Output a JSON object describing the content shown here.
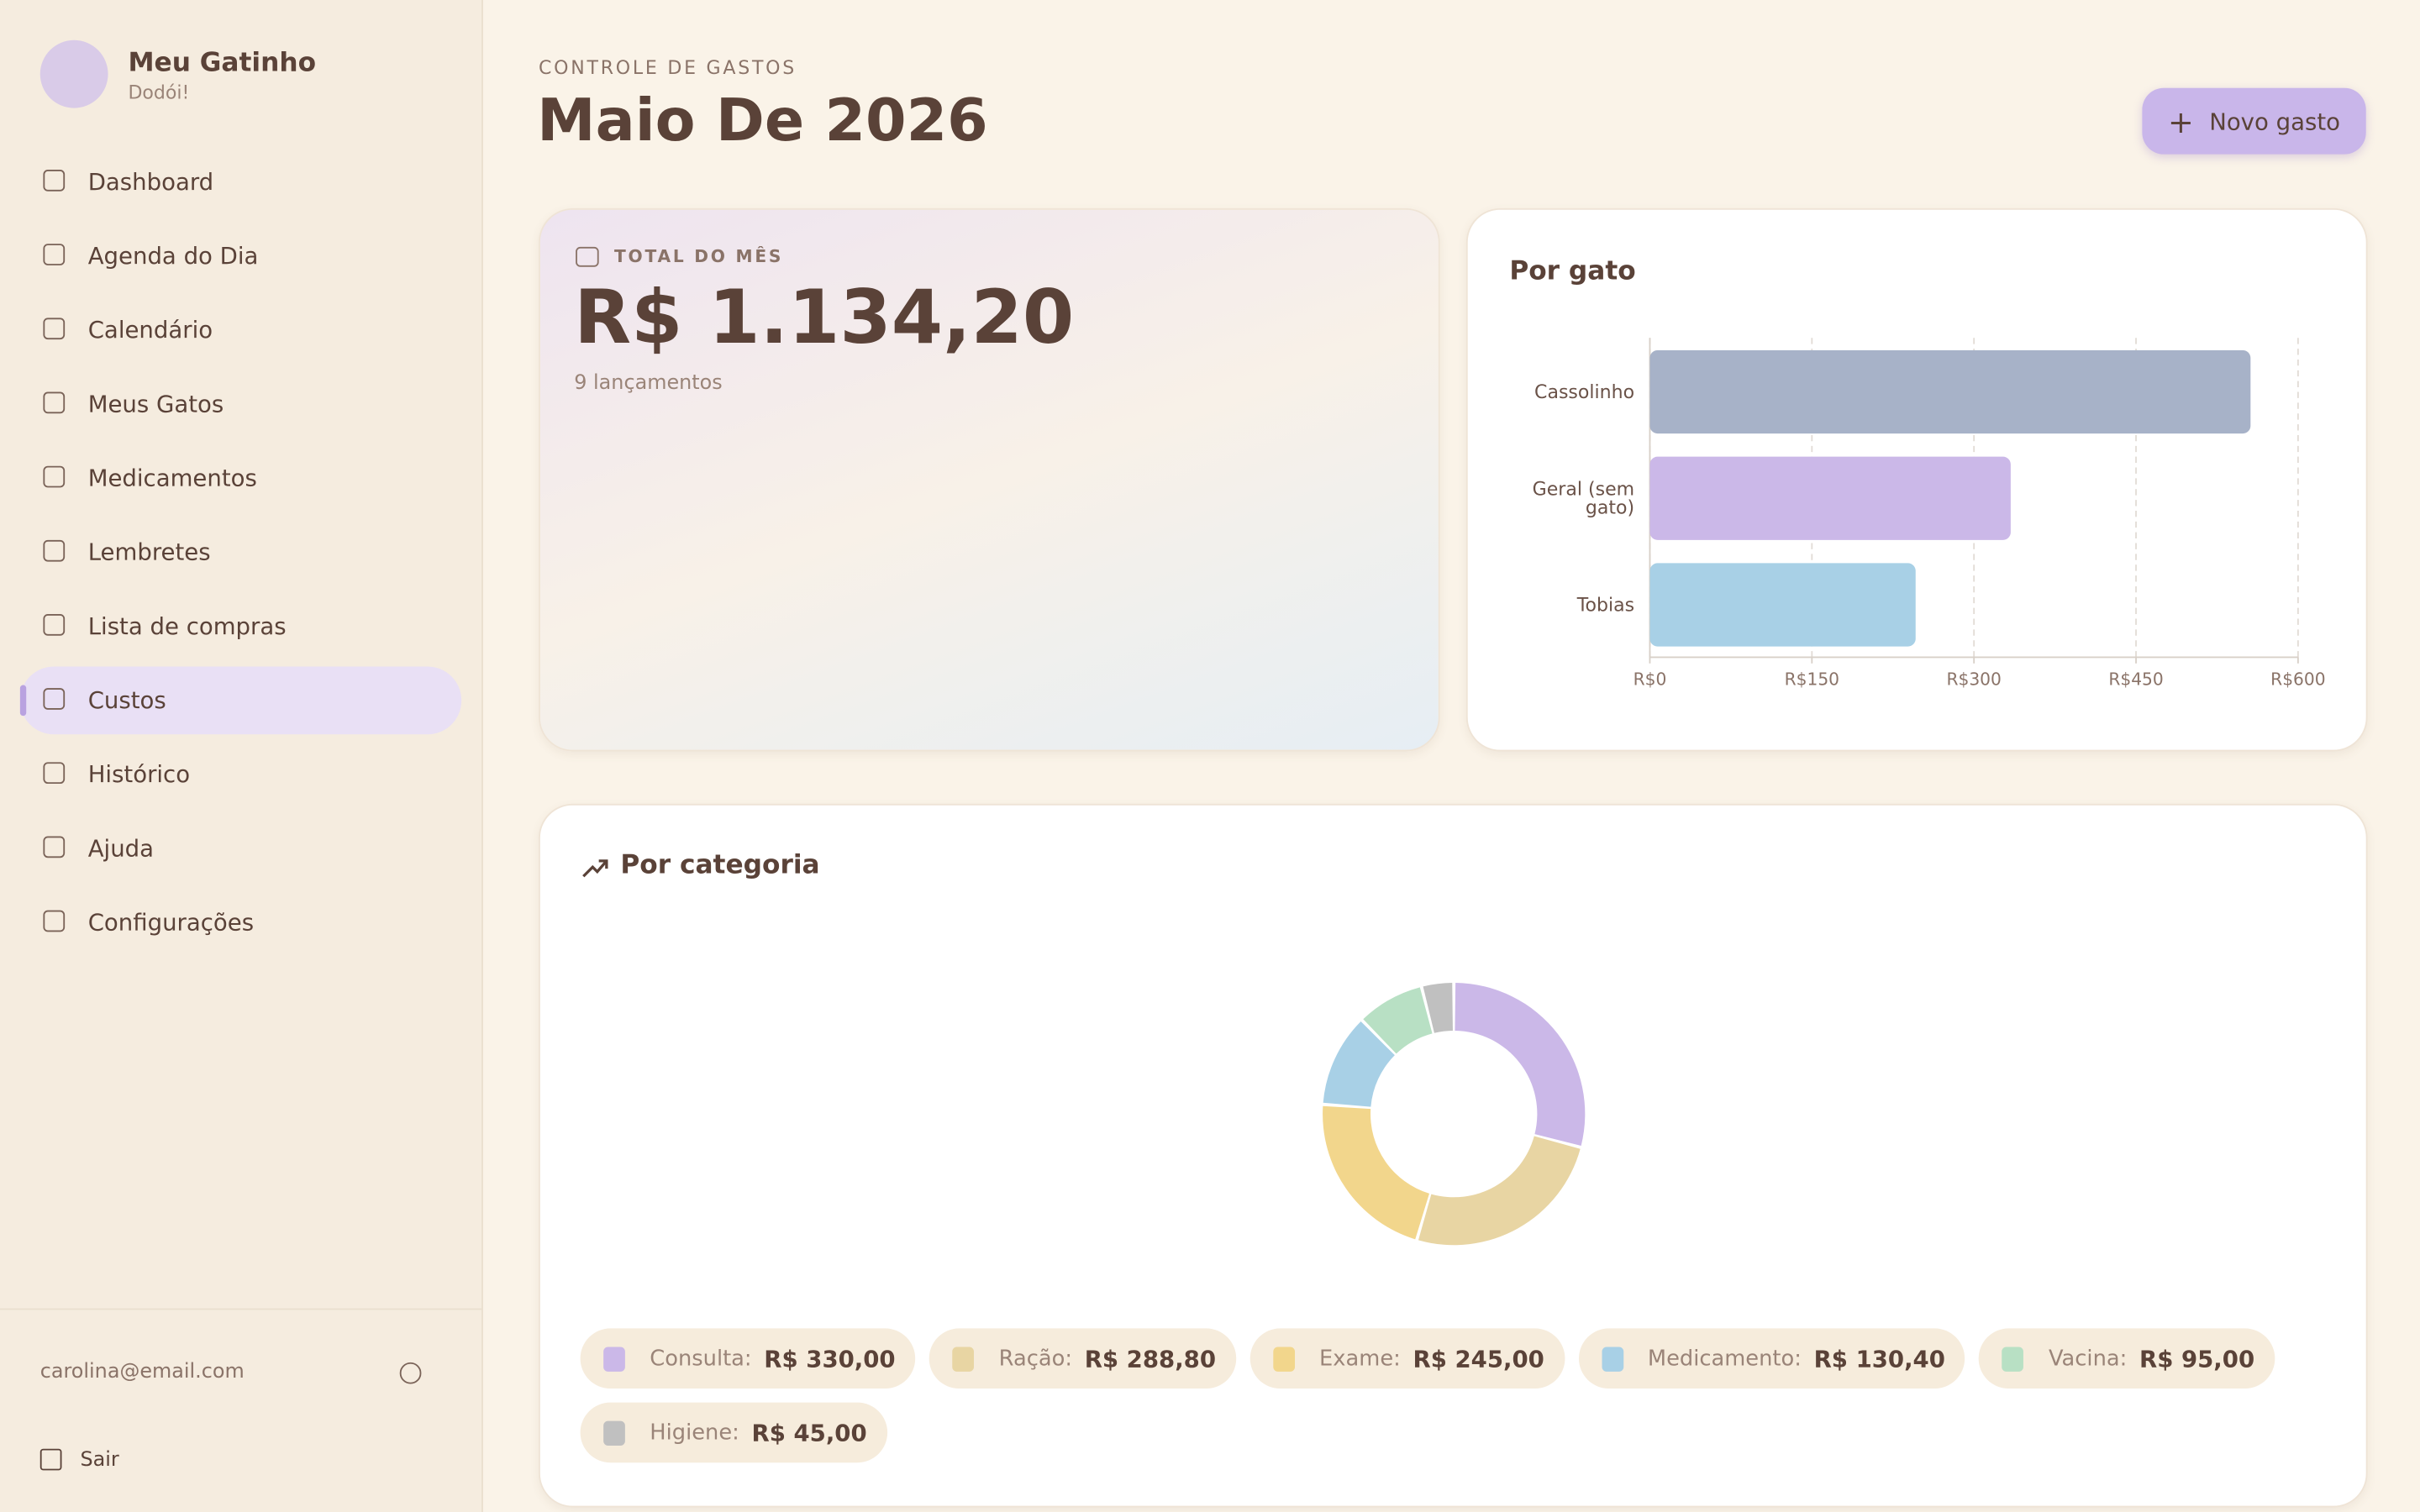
{
  "sidebar": {
    "app_name": "Meu Gatinho",
    "status": "Dodói!",
    "nav": [
      "Dashboard",
      "Agenda do Dia",
      "Calendário",
      "Meus Gatos",
      "Medicamentos",
      "Lembretes",
      "Lista de compras",
      "Custos",
      "Histórico",
      "Ajuda",
      "Configurações"
    ],
    "active": "Custos",
    "email": "carolina@email.com",
    "logout": "Sair"
  },
  "header": {
    "eyebrow": "CONTROLE DE GASTOS",
    "title": "Maio De 2026",
    "button": "Novo gasto"
  },
  "total_card": {
    "label": "TOTAL DO MÊS",
    "amount": "R$ 1.134,20",
    "count": "9 lançamentos"
  },
  "chart_data": [
    {
      "type": "bar",
      "orientation": "horizontal",
      "title": "Por gato",
      "categories": [
        "Cassolinho",
        "Geral (sem gato)",
        "Tobias"
      ],
      "values": [
        556,
        334,
        246
      ],
      "colors": [
        "#a7b2c8",
        "#cbb8e8",
        "#a8d0e6"
      ],
      "xlim": [
        0,
        600
      ],
      "xticks": [
        {
          "value": 0,
          "label": "R$0"
        },
        {
          "value": 150,
          "label": "R$150"
        },
        {
          "value": 300,
          "label": "R$300"
        },
        {
          "value": 450,
          "label": "R$450"
        },
        {
          "value": 600,
          "label": "R$600"
        }
      ],
      "grid": true
    },
    {
      "type": "pie",
      "title": "Por categoria",
      "categories": [
        "Consulta:",
        "Ração:",
        "Exame:",
        "Medicamento:",
        "Vacina:",
        "Higiene:"
      ],
      "values": [
        330,
        288.8,
        245,
        130.4,
        95,
        45
      ],
      "value_labels": [
        "R$ 330,00",
        "R$ 288,80",
        "R$ 245,00",
        "R$ 130,40",
        "R$ 95,00",
        "R$ 45,00"
      ],
      "colors": [
        "#cbb8e8",
        "#e8d5a3",
        "#f2d68c",
        "#a8d0e6",
        "#b8e0c4",
        "#c0c0c0"
      ],
      "donut": true
    }
  ]
}
